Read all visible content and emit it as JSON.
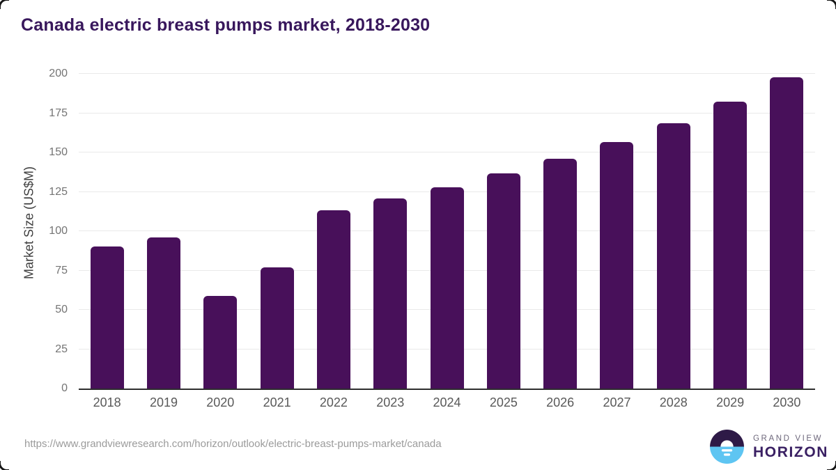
{
  "header": {
    "title": "Canada electric breast pumps market, 2018-2030"
  },
  "chart_data": {
    "type": "bar",
    "title": "Canada electric breast pumps market, 2018-2030",
    "categories": [
      "2018",
      "2019",
      "2020",
      "2021",
      "2022",
      "2023",
      "2024",
      "2025",
      "2026",
      "2027",
      "2028",
      "2029",
      "2030"
    ],
    "values": [
      90.4,
      95.9,
      58.8,
      77.2,
      113.4,
      120.6,
      128.1,
      136.6,
      146.1,
      156.7,
      168.6,
      182.4,
      197.6
    ],
    "xlabel": "",
    "ylabel": "Market Size (US$M)",
    "ylim": [
      0,
      200
    ],
    "yticks": [
      0,
      25,
      50,
      75,
      100,
      125,
      150,
      175,
      200
    ],
    "grid": true,
    "legend": "none",
    "bar_color": "#48105a",
    "gridline_color": "#e9e9e9",
    "axis_line_color": "#2e2e2e"
  },
  "footer": {
    "source_url": "https://www.grandviewresearch.com/horizon/outlook/electric-breast-pumps-market/canada",
    "logo": {
      "icon": "horizon-sun-over-water-icon",
      "top_text": "GRAND VIEW",
      "bottom_text": "HORIZON",
      "icon_colors": {
        "top_half": "#2e1a47",
        "bottom_half": "#5ec5f2",
        "sun": "#ffffff"
      },
      "text_colors": {
        "top_text": "#6d677b",
        "bottom_text": "#3a2063"
      }
    }
  },
  "theme": {
    "title_color": "#38175c",
    "tick_label_color": "#747474",
    "x_label_color": "#595959",
    "source_color": "#9b9b9b",
    "background": "#ffffff"
  }
}
